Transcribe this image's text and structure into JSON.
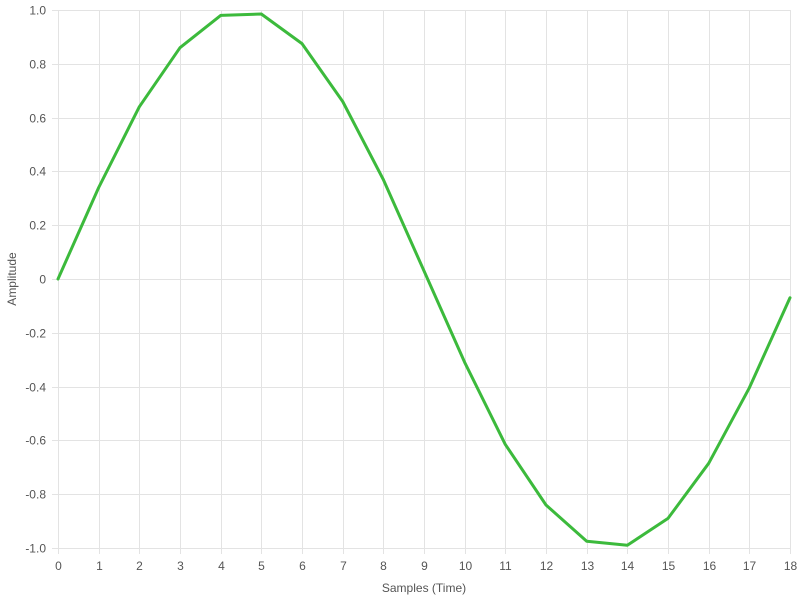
{
  "chart_data": {
    "type": "line",
    "xlabel": "Samples (Time)",
    "ylabel": "Amplitude",
    "xlim": [
      0,
      18
    ],
    "ylim": [
      -1.0,
      1.0
    ],
    "x_ticks": [
      0,
      1,
      2,
      3,
      4,
      5,
      6,
      7,
      8,
      9,
      10,
      11,
      12,
      13,
      14,
      15,
      16,
      17,
      18
    ],
    "x_tick_labels": [
      "0",
      "1",
      "2",
      "3",
      "4",
      "5",
      "6",
      "7",
      "8",
      "9",
      "10",
      "11",
      "12",
      "13",
      "14",
      "15",
      "16",
      "17",
      "18"
    ],
    "y_ticks": [
      1.0,
      0.8,
      0.6,
      0.4,
      0.2,
      0,
      -0.2,
      -0.4,
      -0.6,
      -0.8,
      -1.0
    ],
    "y_tick_labels": [
      "1.0",
      "0.8",
      "0.6",
      "0.4",
      "0.2",
      "0",
      "-0.2",
      "-0.4",
      "-0.6",
      "-0.8",
      "-1.0"
    ],
    "grid": true,
    "legend": "none",
    "series": [
      {
        "color": "#3cba3c",
        "x": [
          0,
          1,
          2,
          3,
          4,
          5,
          6,
          7,
          8,
          9,
          10,
          11,
          12,
          13,
          14,
          15,
          16,
          17,
          18
        ],
        "values": [
          0,
          0.34,
          0.64,
          0.86,
          0.98,
          0.985,
          0.875,
          0.66,
          0.37,
          0.03,
          -0.31,
          -0.615,
          -0.84,
          -0.975,
          -0.99,
          -0.89,
          -0.685,
          -0.405,
          -0.07
        ]
      }
    ]
  }
}
